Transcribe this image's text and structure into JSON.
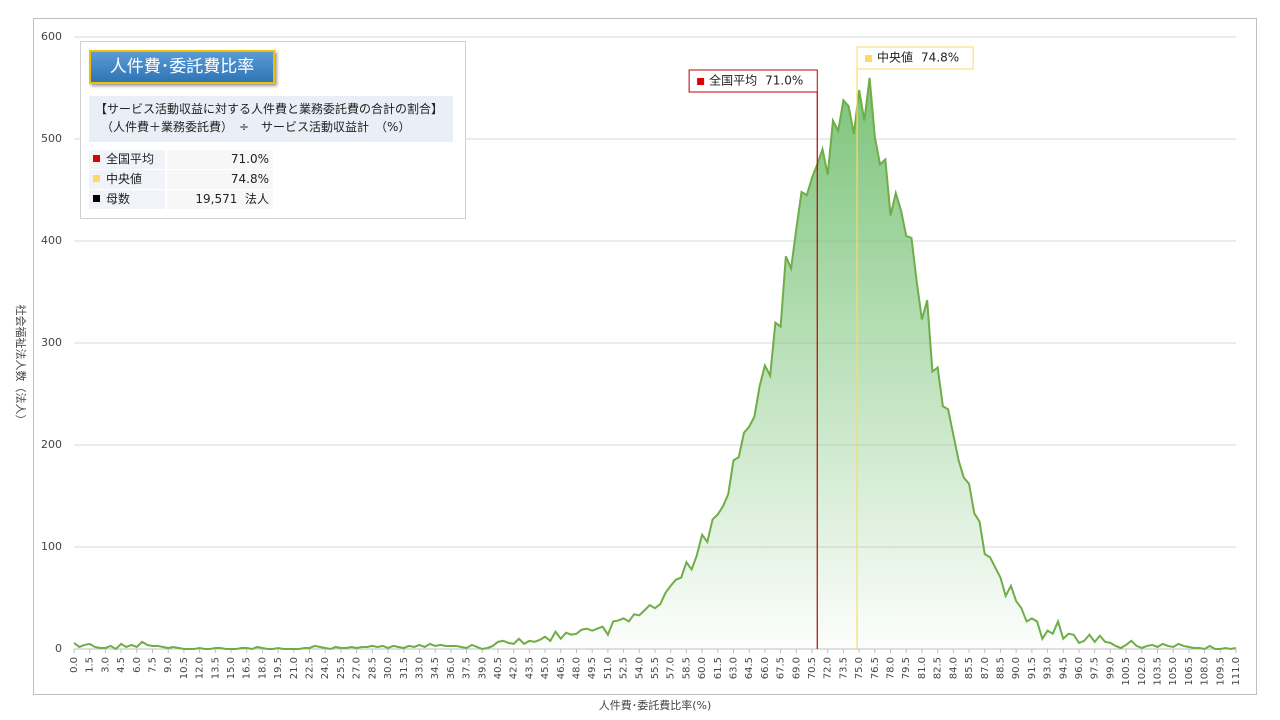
{
  "chart_data": {
    "type": "area",
    "x_axis_label": "人件費･委託費比率(%)",
    "y_axis_label": "社会福祉法人数（法人）",
    "xlim": [
      0,
      111
    ],
    "ylim": [
      0,
      600
    ],
    "yticks": [
      0,
      100,
      200,
      300,
      400,
      500,
      600
    ],
    "grid": true,
    "line_color": "#70ad47",
    "fill_color": "#7cc47a",
    "x": [
      0,
      0.5,
      1,
      1.5,
      2,
      2.5,
      3,
      3.5,
      4,
      4.5,
      5,
      5.5,
      6,
      6.5,
      7,
      7.5,
      8,
      8.5,
      9,
      9.5,
      10,
      10.5,
      11,
      11.5,
      12,
      12.5,
      13,
      13.5,
      14,
      14.5,
      15,
      15.5,
      16,
      16.5,
      17,
      17.5,
      18,
      18.5,
      19,
      19.5,
      20,
      20.5,
      21,
      21.5,
      22,
      22.5,
      23,
      23.5,
      24,
      24.5,
      25,
      25.5,
      26,
      26.5,
      27,
      27.5,
      28,
      28.5,
      29,
      29.5,
      30,
      30.5,
      31,
      31.5,
      32,
      32.5,
      33,
      33.5,
      34,
      34.5,
      35,
      35.5,
      36,
      36.5,
      37,
      37.5,
      38,
      38.5,
      39,
      39.5,
      40,
      40.5,
      41,
      41.5,
      42,
      42.5,
      43,
      43.5,
      44,
      44.5,
      45,
      45.5,
      46,
      46.5,
      47,
      47.5,
      48,
      48.5,
      49,
      49.5,
      50,
      50.5,
      51,
      51.5,
      52,
      52.5,
      53,
      53.5,
      54,
      54.5,
      55,
      55.5,
      56,
      56.5,
      57,
      57.5,
      58,
      58.5,
      59,
      59.5,
      60,
      60.5,
      61,
      61.5,
      62,
      62.5,
      63,
      63.5,
      64,
      64.5,
      65,
      65.5,
      66,
      66.5,
      67,
      67.5,
      68,
      68.5,
      69,
      69.5,
      70,
      70.5,
      71,
      71.5,
      72,
      72.5,
      73,
      73.5,
      74,
      74.5,
      75,
      75.5,
      76,
      76.5,
      77,
      77.5,
      78,
      78.5,
      79,
      79.5,
      80,
      80.5,
      81,
      81.5,
      82,
      82.5,
      83,
      83.5,
      84,
      84.5,
      85,
      85.5,
      86,
      86.5,
      87,
      87.5,
      88,
      88.5,
      89,
      89.5,
      90,
      90.5,
      91,
      91.5,
      92,
      92.5,
      93,
      93.5,
      94,
      94.5,
      95,
      95.5,
      96,
      96.5,
      97,
      97.5,
      98,
      98.5,
      99,
      99.5,
      100,
      100.5,
      101,
      101.5,
      102,
      102.5,
      103,
      103.5,
      104,
      104.5,
      105,
      105.5,
      106,
      106.5,
      107,
      107.5,
      108,
      108.5,
      109,
      109.5,
      110,
      110.5,
      111
    ],
    "values": [
      6,
      2,
      4,
      5,
      2,
      1,
      1,
      3,
      0,
      5,
      2,
      4,
      2,
      7,
      4,
      3,
      3,
      2,
      1,
      2,
      1,
      0,
      0,
      0,
      1,
      0,
      0,
      1,
      1,
      0,
      0,
      0,
      1,
      1,
      0,
      2,
      1,
      0,
      0,
      1,
      0,
      0,
      0,
      0,
      1,
      1,
      3,
      2,
      1,
      0,
      2,
      1,
      1,
      2,
      1,
      2,
      2,
      3,
      2,
      3,
      1,
      3,
      2,
      1,
      3,
      2,
      4,
      2,
      5,
      3,
      4,
      3,
      3,
      3,
      2,
      1,
      4,
      2,
      0,
      1,
      3,
      7,
      8,
      6,
      5,
      10,
      5,
      8,
      7,
      9,
      12,
      8,
      17,
      10,
      16,
      14,
      15,
      19,
      20,
      18,
      20,
      22,
      14,
      27,
      28,
      30,
      27,
      34,
      33,
      38,
      43,
      40,
      44,
      55,
      62,
      68,
      70,
      85,
      78,
      92,
      112,
      105,
      127,
      132,
      140,
      152,
      185,
      188,
      212,
      218,
      228,
      258,
      278,
      268,
      320,
      316,
      385,
      373,
      412,
      448,
      445,
      462,
      475,
      490,
      465,
      518,
      508,
      538,
      532,
      505,
      548,
      518,
      560,
      502,
      475,
      480,
      425,
      447,
      430,
      405,
      403,
      360,
      323,
      342,
      272,
      276,
      238,
      235,
      210,
      185,
      168,
      162,
      133,
      125,
      93,
      90,
      80,
      70,
      52,
      62,
      47,
      40,
      27,
      30,
      27,
      10,
      18,
      15,
      27,
      10,
      15,
      14,
      6,
      8,
      14,
      7,
      13,
      7,
      6,
      3,
      1,
      4,
      8,
      3,
      1,
      3,
      4,
      2,
      5,
      3,
      2,
      5,
      3,
      2,
      1,
      1,
      0,
      3,
      0,
      0,
      1,
      0,
      1
    ],
    "xticks": [
      {
        "value": 0,
        "label": "0.0"
      },
      1.5,
      {
        "value": 3,
        "label": "3.0"
      },
      4.5,
      {
        "value": 6,
        "label": "6.0"
      },
      7.5,
      {
        "value": 9,
        "label": "9.0"
      },
      10.5,
      {
        "value": 12,
        "label": "12.0"
      },
      13.5,
      {
        "value": 15,
        "label": "15.0"
      },
      16.5,
      {
        "value": 18,
        "label": "18.0"
      },
      19.5,
      {
        "value": 21,
        "label": "21.0"
      },
      22.5,
      {
        "value": 24,
        "label": "24.0"
      },
      25.5,
      {
        "value": 27,
        "label": "27.0"
      },
      28.5,
      {
        "value": 30,
        "label": "30.0"
      },
      31.5,
      {
        "value": 33,
        "label": "33.0"
      },
      34.5,
      {
        "value": 36,
        "label": "36.0"
      },
      37.5,
      {
        "value": 39,
        "label": "39.0"
      },
      40.5,
      {
        "value": 42,
        "label": "42.0"
      },
      43.5,
      {
        "value": 45,
        "label": "45.0"
      },
      46.5,
      {
        "value": 48,
        "label": "48.0"
      },
      49.5,
      {
        "value": 51,
        "label": "51.0"
      },
      52.5,
      {
        "value": 54,
        "label": "54.0"
      },
      55.5,
      {
        "value": 57,
        "label": "57.0"
      },
      58.5,
      {
        "value": 60,
        "label": "60.0"
      },
      61.5,
      {
        "value": 63,
        "label": "63.0"
      },
      64.5,
      {
        "value": 66,
        "label": "66.0"
      },
      67.5,
      {
        "value": 69,
        "label": "69.0"
      },
      70.5,
      {
        "value": 72,
        "label": "72.0"
      },
      73.5,
      {
        "value": 75,
        "label": "75.0"
      },
      76.5,
      {
        "value": 78,
        "label": "78.0"
      },
      79.5,
      {
        "value": 81,
        "label": "81.0"
      },
      82.5,
      {
        "value": 84,
        "label": "84.0"
      },
      85.5,
      {
        "value": 87,
        "label": "87.0"
      },
      88.5,
      {
        "value": 90,
        "label": "90.0"
      },
      91.5,
      {
        "value": 93,
        "label": "93.0"
      },
      94.5,
      {
        "value": 96,
        "label": "96.0"
      },
      97.5,
      {
        "value": 99,
        "label": "99.0"
      },
      100.5,
      {
        "value": 102,
        "label": "102.0"
      },
      103.5,
      {
        "value": 105,
        "label": "105.0"
      },
      106.5,
      {
        "value": 108,
        "label": "108.0"
      },
      109.5,
      {
        "value": 111,
        "label": "111.0"
      }
    ],
    "reference_lines": [
      {
        "name": "全国平均",
        "value": 71.0,
        "value_label": "71.0%",
        "color": "#c00000"
      },
      {
        "name": "中央値",
        "value": 74.8,
        "value_label": "74.8%",
        "color": "#ffd966"
      }
    ],
    "info_box": {
      "title": "人件費･委託費比率",
      "description": [
        "【サービス活動収益に対する人件費と業務委託費の合計の割合】",
        "（人件費＋業務委託費）　÷　サービス活動収益計　（%）"
      ],
      "rows": [
        {
          "label": "全国平均",
          "value": "71.0%",
          "color": "#e00000"
        },
        {
          "label": "中央値",
          "value": "74.8%",
          "color": "#ffd966"
        },
        {
          "label": "母数",
          "value": "19,571  法人",
          "color": "#000000"
        }
      ]
    }
  }
}
